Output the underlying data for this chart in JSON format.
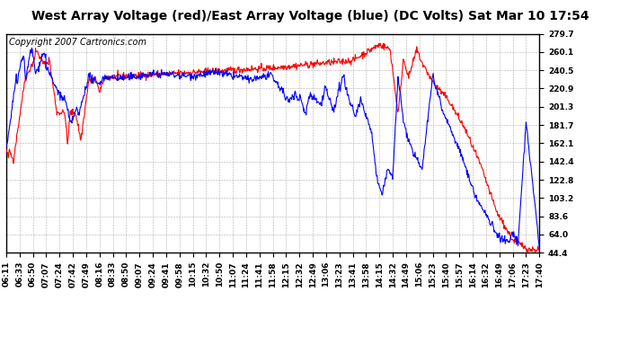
{
  "title": "West Array Voltage (red)/East Array Voltage (blue) (DC Volts) Sat Mar 10 17:54",
  "copyright": "Copyright 2007 Cartronics.com",
  "yticks": [
    279.7,
    260.1,
    240.5,
    220.9,
    201.3,
    181.7,
    162.1,
    142.4,
    122.8,
    103.2,
    83.6,
    64.0,
    44.4
  ],
  "ylim": [
    44.4,
    279.7
  ],
  "xtick_labels": [
    "06:11",
    "06:33",
    "06:50",
    "07:07",
    "07:24",
    "07:42",
    "07:49",
    "08:16",
    "08:33",
    "08:50",
    "09:07",
    "09:24",
    "09:41",
    "09:58",
    "10:15",
    "10:32",
    "10:50",
    "11:07",
    "11:24",
    "11:41",
    "11:58",
    "12:15",
    "12:32",
    "12:49",
    "13:06",
    "13:23",
    "13:41",
    "13:58",
    "14:15",
    "14:32",
    "14:49",
    "15:06",
    "15:23",
    "15:40",
    "15:57",
    "16:14",
    "16:32",
    "16:49",
    "17:06",
    "17:23",
    "17:40"
  ],
  "red_color": "#ff0000",
  "blue_color": "#0000ff",
  "bg_color": "#ffffff",
  "grid_color": "#b0b0b0",
  "title_fontsize": 10,
  "copyright_fontsize": 7,
  "tick_fontsize": 6.5,
  "linewidth": 0.8
}
